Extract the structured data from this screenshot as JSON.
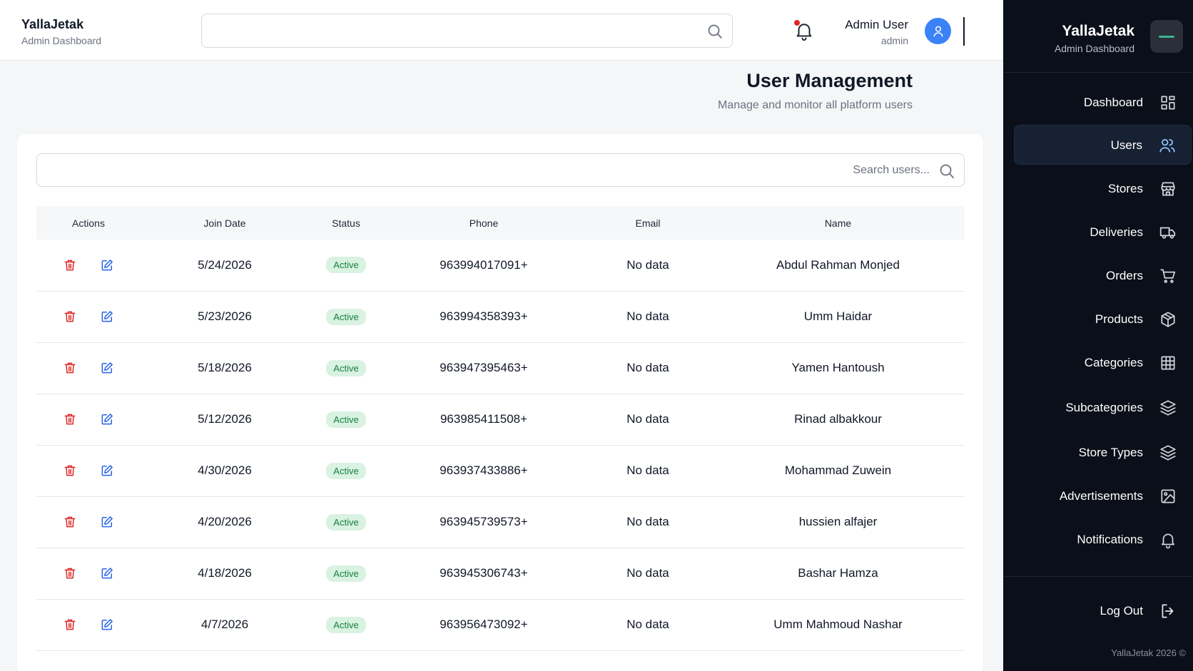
{
  "header": {
    "brand_name": "YallaJetak",
    "brand_sub": "Admin Dashboard",
    "search_placeholder": "",
    "user_name": "Admin User",
    "user_role": "admin"
  },
  "page": {
    "title": "User Management",
    "subtitle": "Manage and monitor all platform users",
    "search_placeholder": "Search users..."
  },
  "table": {
    "columns": [
      "Actions",
      "Join Date",
      "Status",
      "Phone",
      "Email",
      "Name"
    ],
    "rows": [
      {
        "join_date": "5/24/2026",
        "status": "Active",
        "phone": "963994017091+",
        "email": "No data",
        "name": "Abdul Rahman Monjed"
      },
      {
        "join_date": "5/23/2026",
        "status": "Active",
        "phone": "963994358393+",
        "email": "No data",
        "name": "Umm Haidar"
      },
      {
        "join_date": "5/18/2026",
        "status": "Active",
        "phone": "963947395463+",
        "email": "No data",
        "name": "Yamen Hantoush"
      },
      {
        "join_date": "5/12/2026",
        "status": "Active",
        "phone": "963985411508+",
        "email": "No data",
        "name": "Rinad albakkour"
      },
      {
        "join_date": "4/30/2026",
        "status": "Active",
        "phone": "963937433886+",
        "email": "No data",
        "name": "Mohammad Zuwein"
      },
      {
        "join_date": "4/20/2026",
        "status": "Active",
        "phone": "963945739573+",
        "email": "No data",
        "name": "hussien alfajer"
      },
      {
        "join_date": "4/18/2026",
        "status": "Active",
        "phone": "963945306743+",
        "email": "No data",
        "name": "Bashar Hamza"
      },
      {
        "join_date": "4/7/2026",
        "status": "Active",
        "phone": "963956473092+",
        "email": "No data",
        "name": "Umm Mahmoud Nashar"
      }
    ]
  },
  "sidebar": {
    "brand_name": "YallaJetak",
    "brand_sub": "Admin Dashboard",
    "items": [
      {
        "label": "Dashboard",
        "icon": "grid-icon"
      },
      {
        "label": "Users",
        "icon": "users-icon",
        "active": true
      },
      {
        "label": "Stores",
        "icon": "store-icon"
      },
      {
        "label": "Deliveries",
        "icon": "truck-icon"
      },
      {
        "label": "Orders",
        "icon": "cart-icon"
      },
      {
        "label": "Products",
        "icon": "box-icon"
      },
      {
        "label": "Categories",
        "icon": "table-grid-icon"
      },
      {
        "label": "Subcategories",
        "icon": "layers-icon"
      },
      {
        "label": "Store Types",
        "icon": "layers-icon"
      },
      {
        "label": "Advertisements",
        "icon": "image-icon"
      },
      {
        "label": "Notifications",
        "icon": "bell-icon"
      }
    ],
    "logout_label": "Log Out",
    "footer": "YallaJetak 2026 ©"
  },
  "colors": {
    "sidebar_bg": "#0b0f19",
    "active_item_bg": "#162133",
    "accent": "#3b82f6",
    "danger": "#dc2626",
    "success_badge_bg": "#d9f2e2",
    "success_badge_text": "#15803d"
  }
}
